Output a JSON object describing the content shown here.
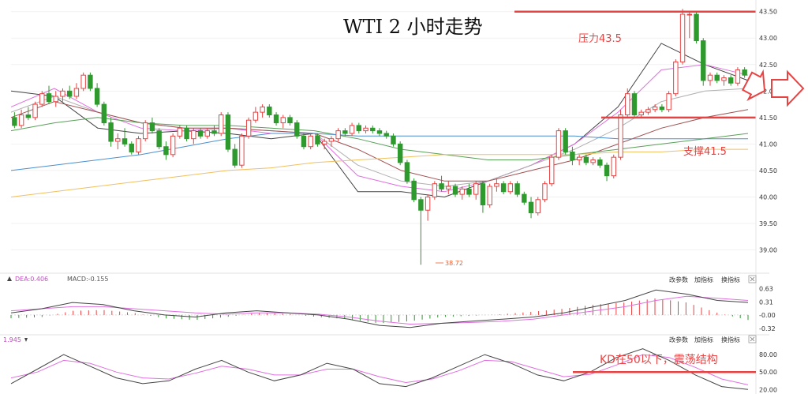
{
  "title": "WTI 2 小时走势",
  "main_chart": {
    "y_ticks": [
      "43.50",
      "43.00",
      "42.50",
      "42.00",
      "41.50",
      "41.00",
      "40.50",
      "40.00",
      "39.50",
      "39.00"
    ],
    "y_range": [
      38.65,
      43.6
    ],
    "low_marker": "38.72",
    "resistance_label": "压力43.5",
    "resistance_level": 43.5,
    "support_label": "支撑41.5",
    "support_level": 41.5,
    "up_color": "#e84343",
    "down_color": "#2e9a2e"
  },
  "macd_panel": {
    "legend_dea": "DEA:0.406",
    "legend_macd": "MACD:-0.155",
    "buttons": [
      "改参数",
      "加指标",
      "换指标"
    ],
    "close_icon": "x-icon",
    "y_ticks": [
      "0.63",
      "0.31",
      "-0.00",
      "-0.32"
    ]
  },
  "kd_panel": {
    "legend_value": "1.945",
    "buttons": [
      "改参数",
      "加指标",
      "换指标"
    ],
    "close_icon": "x-icon",
    "y_ticks": [
      "80.00",
      "50.00",
      "20.00"
    ],
    "annotation": "KD在50以下，震荡结构",
    "level": 50
  },
  "arrow_icon": "right-arrow-icon",
  "chart_data": {
    "type": "candlestick",
    "title": "WTI 2 小时走势",
    "ylim": [
      38.65,
      43.6
    ],
    "candles": [
      {
        "o": 41.5,
        "h": 41.6,
        "l": 41.3,
        "c": 41.35
      },
      {
        "o": 41.35,
        "h": 41.65,
        "l": 41.3,
        "c": 41.55
      },
      {
        "o": 41.55,
        "h": 41.7,
        "l": 41.45,
        "c": 41.5
      },
      {
        "o": 41.5,
        "h": 41.8,
        "l": 41.45,
        "c": 41.75
      },
      {
        "o": 41.75,
        "h": 42.0,
        "l": 41.7,
        "c": 41.95
      },
      {
        "o": 41.95,
        "h": 42.1,
        "l": 41.75,
        "c": 41.8
      },
      {
        "o": 41.8,
        "h": 42.0,
        "l": 41.7,
        "c": 41.9
      },
      {
        "o": 41.9,
        "h": 42.05,
        "l": 41.8,
        "c": 42.0
      },
      {
        "o": 42.0,
        "h": 42.1,
        "l": 41.85,
        "c": 41.9
      },
      {
        "o": 41.9,
        "h": 42.15,
        "l": 41.85,
        "c": 42.05
      },
      {
        "o": 42.05,
        "h": 42.35,
        "l": 42.0,
        "c": 42.3
      },
      {
        "o": 42.3,
        "h": 42.35,
        "l": 42.0,
        "c": 42.05
      },
      {
        "o": 42.05,
        "h": 42.15,
        "l": 41.7,
        "c": 41.75
      },
      {
        "o": 41.75,
        "h": 41.8,
        "l": 41.35,
        "c": 41.4
      },
      {
        "o": 41.4,
        "h": 41.5,
        "l": 40.95,
        "c": 41.05
      },
      {
        "o": 41.05,
        "h": 41.2,
        "l": 40.9,
        "c": 41.1
      },
      {
        "o": 41.1,
        "h": 41.3,
        "l": 40.95,
        "c": 41.0
      },
      {
        "o": 41.0,
        "h": 41.05,
        "l": 40.8,
        "c": 40.85
      },
      {
        "o": 40.85,
        "h": 41.15,
        "l": 40.8,
        "c": 41.1
      },
      {
        "o": 41.1,
        "h": 41.45,
        "l": 41.05,
        "c": 41.4
      },
      {
        "o": 41.4,
        "h": 41.5,
        "l": 41.2,
        "c": 41.25
      },
      {
        "o": 41.25,
        "h": 41.3,
        "l": 40.9,
        "c": 40.95
      },
      {
        "o": 40.95,
        "h": 41.05,
        "l": 40.7,
        "c": 40.8
      },
      {
        "o": 40.8,
        "h": 41.2,
        "l": 40.75,
        "c": 41.15
      },
      {
        "o": 41.15,
        "h": 41.35,
        "l": 41.1,
        "c": 41.3
      },
      {
        "o": 41.3,
        "h": 41.35,
        "l": 41.05,
        "c": 41.1
      },
      {
        "o": 41.1,
        "h": 41.3,
        "l": 41.0,
        "c": 41.25
      },
      {
        "o": 41.25,
        "h": 41.3,
        "l": 41.1,
        "c": 41.15
      },
      {
        "o": 41.15,
        "h": 41.3,
        "l": 41.1,
        "c": 41.25
      },
      {
        "o": 41.25,
        "h": 41.35,
        "l": 41.15,
        "c": 41.2
      },
      {
        "o": 41.2,
        "h": 41.6,
        "l": 41.15,
        "c": 41.55
      },
      {
        "o": 41.55,
        "h": 41.6,
        "l": 40.85,
        "c": 40.9
      },
      {
        "o": 40.9,
        "h": 41.0,
        "l": 40.55,
        "c": 40.6
      },
      {
        "o": 40.6,
        "h": 41.2,
        "l": 40.55,
        "c": 41.15
      },
      {
        "o": 41.15,
        "h": 41.5,
        "l": 41.1,
        "c": 41.45
      },
      {
        "o": 41.45,
        "h": 41.7,
        "l": 41.4,
        "c": 41.6
      },
      {
        "o": 41.6,
        "h": 41.75,
        "l": 41.5,
        "c": 41.7
      },
      {
        "o": 41.7,
        "h": 41.75,
        "l": 41.5,
        "c": 41.55
      },
      {
        "o": 41.55,
        "h": 41.6,
        "l": 41.35,
        "c": 41.4
      },
      {
        "o": 41.4,
        "h": 41.55,
        "l": 41.3,
        "c": 41.5
      },
      {
        "o": 41.5,
        "h": 41.55,
        "l": 41.35,
        "c": 41.4
      },
      {
        "o": 41.4,
        "h": 41.45,
        "l": 41.1,
        "c": 41.15
      },
      {
        "o": 41.15,
        "h": 41.2,
        "l": 40.9,
        "c": 40.95
      },
      {
        "o": 40.95,
        "h": 41.2,
        "l": 40.9,
        "c": 41.15
      },
      {
        "o": 41.15,
        "h": 41.2,
        "l": 40.95,
        "c": 41.0
      },
      {
        "o": 41.0,
        "h": 41.1,
        "l": 40.9,
        "c": 41.05
      },
      {
        "o": 41.05,
        "h": 41.15,
        "l": 40.95,
        "c": 41.1
      },
      {
        "o": 41.1,
        "h": 41.3,
        "l": 41.05,
        "c": 41.25
      },
      {
        "o": 41.25,
        "h": 41.3,
        "l": 41.15,
        "c": 41.2
      },
      {
        "o": 41.2,
        "h": 41.4,
        "l": 41.15,
        "c": 41.35
      },
      {
        "o": 41.35,
        "h": 41.4,
        "l": 41.2,
        "c": 41.25
      },
      {
        "o": 41.25,
        "h": 41.35,
        "l": 41.2,
        "c": 41.3
      },
      {
        "o": 41.3,
        "h": 41.35,
        "l": 41.2,
        "c": 41.25
      },
      {
        "o": 41.25,
        "h": 41.3,
        "l": 41.15,
        "c": 41.2
      },
      {
        "o": 41.2,
        "h": 41.25,
        "l": 41.1,
        "c": 41.15
      },
      {
        "o": 41.15,
        "h": 41.2,
        "l": 40.95,
        "c": 41.0
      },
      {
        "o": 41.0,
        "h": 41.05,
        "l": 40.6,
        "c": 40.65
      },
      {
        "o": 40.65,
        "h": 40.7,
        "l": 40.25,
        "c": 40.3
      },
      {
        "o": 40.3,
        "h": 40.35,
        "l": 39.9,
        "c": 39.95
      },
      {
        "o": 39.95,
        "h": 40.0,
        "l": 38.72,
        "c": 39.75
      },
      {
        "o": 39.75,
        "h": 40.05,
        "l": 39.55,
        "c": 40.0
      },
      {
        "o": 40.0,
        "h": 40.3,
        "l": 39.95,
        "c": 40.25
      },
      {
        "o": 40.25,
        "h": 40.4,
        "l": 40.1,
        "c": 40.15
      },
      {
        "o": 40.15,
        "h": 40.3,
        "l": 40.05,
        "c": 40.2
      },
      {
        "o": 40.2,
        "h": 40.25,
        "l": 40.0,
        "c": 40.05
      },
      {
        "o": 40.05,
        "h": 40.2,
        "l": 39.95,
        "c": 40.15
      },
      {
        "o": 40.15,
        "h": 40.25,
        "l": 40.0,
        "c": 40.05
      },
      {
        "o": 40.05,
        "h": 40.3,
        "l": 39.95,
        "c": 40.25
      },
      {
        "o": 40.25,
        "h": 40.3,
        "l": 39.7,
        "c": 39.85
      },
      {
        "o": 39.85,
        "h": 40.25,
        "l": 39.8,
        "c": 40.2
      },
      {
        "o": 40.2,
        "h": 40.35,
        "l": 40.1,
        "c": 40.25
      },
      {
        "o": 40.25,
        "h": 40.3,
        "l": 40.05,
        "c": 40.1
      },
      {
        "o": 40.1,
        "h": 40.3,
        "l": 40.05,
        "c": 40.25
      },
      {
        "o": 40.25,
        "h": 40.3,
        "l": 40.0,
        "c": 40.05
      },
      {
        "o": 40.05,
        "h": 40.1,
        "l": 39.85,
        "c": 39.9
      },
      {
        "o": 39.9,
        "h": 40.0,
        "l": 39.6,
        "c": 39.7
      },
      {
        "o": 39.7,
        "h": 40.0,
        "l": 39.65,
        "c": 39.95
      },
      {
        "o": 39.95,
        "h": 40.3,
        "l": 39.9,
        "c": 40.25
      },
      {
        "o": 40.25,
        "h": 40.8,
        "l": 40.2,
        "c": 40.75
      },
      {
        "o": 40.75,
        "h": 41.3,
        "l": 40.7,
        "c": 41.25
      },
      {
        "o": 41.25,
        "h": 41.3,
        "l": 40.8,
        "c": 40.85
      },
      {
        "o": 40.85,
        "h": 40.95,
        "l": 40.6,
        "c": 40.7
      },
      {
        "o": 40.7,
        "h": 40.8,
        "l": 40.6,
        "c": 40.75
      },
      {
        "o": 40.75,
        "h": 40.8,
        "l": 40.6,
        "c": 40.65
      },
      {
        "o": 40.65,
        "h": 40.75,
        "l": 40.6,
        "c": 40.7
      },
      {
        "o": 40.7,
        "h": 40.75,
        "l": 40.55,
        "c": 40.6
      },
      {
        "o": 40.6,
        "h": 40.65,
        "l": 40.3,
        "c": 40.4
      },
      {
        "o": 40.4,
        "h": 40.8,
        "l": 40.35,
        "c": 40.75
      },
      {
        "o": 40.75,
        "h": 41.65,
        "l": 40.7,
        "c": 41.55
      },
      {
        "o": 41.55,
        "h": 42.05,
        "l": 41.5,
        "c": 41.95
      },
      {
        "o": 41.95,
        "h": 42.0,
        "l": 41.5,
        "c": 41.55
      },
      {
        "o": 41.55,
        "h": 41.65,
        "l": 41.5,
        "c": 41.6
      },
      {
        "o": 41.6,
        "h": 41.7,
        "l": 41.55,
        "c": 41.65
      },
      {
        "o": 41.65,
        "h": 41.75,
        "l": 41.6,
        "c": 41.7
      },
      {
        "o": 41.7,
        "h": 41.75,
        "l": 41.6,
        "c": 41.65
      },
      {
        "o": 41.65,
        "h": 42.0,
        "l": 41.6,
        "c": 41.95
      },
      {
        "o": 41.95,
        "h": 42.6,
        "l": 41.9,
        "c": 42.55
      },
      {
        "o": 42.55,
        "h": 43.55,
        "l": 42.5,
        "c": 43.45
      },
      {
        "o": 43.45,
        "h": 43.5,
        "l": 43.0,
        "c": 43.45
      },
      {
        "o": 43.45,
        "h": 43.5,
        "l": 42.9,
        "c": 42.95
      },
      {
        "o": 42.95,
        "h": 43.0,
        "l": 42.1,
        "c": 42.2
      },
      {
        "o": 42.2,
        "h": 42.35,
        "l": 42.1,
        "c": 42.3
      },
      {
        "o": 42.3,
        "h": 42.35,
        "l": 42.15,
        "c": 42.2
      },
      {
        "o": 42.2,
        "h": 42.3,
        "l": 42.1,
        "c": 42.25
      },
      {
        "o": 42.25,
        "h": 42.3,
        "l": 42.1,
        "c": 42.15
      },
      {
        "o": 42.15,
        "h": 42.45,
        "l": 42.1,
        "c": 42.4
      },
      {
        "o": 42.4,
        "h": 42.45,
        "l": 42.25,
        "c": 42.3
      }
    ],
    "moving_averages": [
      {
        "color": "#444444",
        "start": 42.0,
        "path": [
          42.0,
          41.9,
          41.3,
          41.2,
          41.25,
          41.2,
          41.1,
          41.2,
          40.1,
          40.1,
          40.0,
          40.3,
          40.6,
          41.0,
          41.7,
          42.9,
          42.5,
          42.2
        ]
      },
      {
        "color": "#e070e0",
        "start": 41.7,
        "path": [
          41.7,
          42.05,
          41.6,
          41.3,
          41.25,
          41.3,
          41.2,
          41.2,
          40.4,
          40.2,
          40.1,
          40.3,
          40.6,
          41.0,
          41.6,
          42.4,
          42.5,
          42.3
        ]
      },
      {
        "color": "#b0b0b0",
        "start": 41.6,
        "path": [
          41.6,
          41.9,
          41.6,
          41.4,
          41.3,
          41.3,
          41.25,
          41.2,
          40.6,
          40.3,
          40.2,
          40.3,
          40.6,
          40.9,
          41.3,
          41.8,
          42.0,
          42.05
        ]
      },
      {
        "color": "#a05050",
        "start": 41.5,
        "path": [
          41.5,
          41.8,
          41.6,
          41.4,
          41.3,
          41.3,
          41.25,
          41.2,
          40.9,
          40.5,
          40.3,
          40.3,
          40.5,
          40.7,
          41.0,
          41.3,
          41.5,
          41.65
        ]
      },
      {
        "color": "#5aa05a",
        "start": 41.25,
        "path": [
          41.25,
          41.4,
          41.5,
          41.4,
          41.35,
          41.35,
          41.3,
          41.25,
          41.1,
          40.9,
          40.8,
          40.7,
          40.7,
          40.8,
          40.9,
          41.0,
          41.1,
          41.2
        ]
      },
      {
        "color": "#4a90d0",
        "start": 40.5,
        "path": [
          40.5,
          40.6,
          40.7,
          40.8,
          40.95,
          41.1,
          41.2,
          41.2,
          41.15,
          41.15,
          41.15,
          41.15,
          41.15,
          41.15,
          41.1,
          41.1,
          41.1,
          41.1
        ]
      },
      {
        "color": "#f0c060",
        "start": 40.0,
        "path": [
          40.0,
          40.1,
          40.2,
          40.3,
          40.4,
          40.5,
          40.55,
          40.65,
          40.7,
          40.75,
          40.8,
          40.8,
          40.8,
          40.8,
          40.85,
          40.85,
          40.9,
          40.9
        ]
      }
    ],
    "macd": {
      "ylim": [
        -0.4,
        0.7
      ],
      "dif": [
        0.05,
        0.15,
        0.3,
        0.25,
        0.1,
        0.0,
        -0.05,
        0.05,
        0.1,
        0.05,
        0.0,
        -0.1,
        -0.25,
        -0.3,
        -0.2,
        -0.15,
        -0.1,
        -0.05,
        0.05,
        0.2,
        0.35,
        0.6,
        0.5,
        0.35,
        0.3
      ],
      "dea": [
        0.1,
        0.15,
        0.2,
        0.2,
        0.15,
        0.1,
        0.05,
        0.02,
        0.05,
        0.05,
        0.02,
        -0.05,
        -0.15,
        -0.22,
        -0.2,
        -0.18,
        -0.15,
        -0.1,
        0.0,
        0.1,
        0.2,
        0.35,
        0.45,
        0.4,
        0.35
      ],
      "hist": [
        -0.08,
        -0.05,
        0.1,
        0.12,
        0.05,
        -0.08,
        -0.12,
        -0.05,
        0.05,
        0.03,
        -0.05,
        -0.1,
        -0.2,
        -0.15,
        -0.05,
        -0.02,
        0.02,
        0.08,
        0.15,
        0.25,
        0.3,
        0.4,
        0.3,
        0.05,
        -0.12
      ]
    },
    "kd": {
      "ylim": [
        15,
        95
      ],
      "k": [
        30,
        55,
        80,
        60,
        40,
        30,
        35,
        55,
        70,
        50,
        35,
        45,
        65,
        55,
        30,
        25,
        40,
        60,
        80,
        65,
        45,
        35,
        50,
        75,
        90,
        70,
        45,
        25,
        20
      ],
      "d": [
        40,
        50,
        70,
        65,
        50,
        40,
        38,
        48,
        60,
        55,
        45,
        45,
        55,
        55,
        42,
        32,
        38,
        52,
        70,
        68,
        55,
        42,
        46,
        62,
        80,
        75,
        58,
        38,
        28
      ]
    }
  }
}
